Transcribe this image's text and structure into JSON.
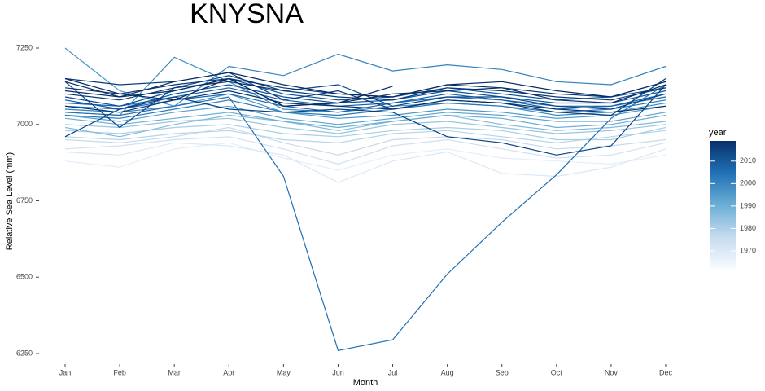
{
  "chart_data": {
    "type": "line",
    "title": "KNYSNA",
    "x_label": "Month",
    "y_label": "Relative Sea Level (mm)",
    "categories": [
      "Jan",
      "Feb",
      "Mar",
      "Apr",
      "May",
      "Jun",
      "Jul",
      "Aug",
      "Sep",
      "Oct",
      "Nov",
      "Dec"
    ],
    "ylim": [
      6220,
      7300
    ],
    "yticks": [
      6250,
      6500,
      6750,
      7000,
      7250
    ],
    "grid": false,
    "legend": {
      "title": "year",
      "position": "right",
      "colorbar_lim": [
        1962,
        2019
      ],
      "colorbar_ticks": [
        1970,
        1980,
        1990,
        2000,
        2010
      ],
      "colorbar_colors": [
        "#f7fbff",
        "#c6dbef",
        "#6baed6",
        "#2171b5",
        "#08306b"
      ]
    },
    "series": [
      {
        "name": "1965",
        "color": "#e4eef9",
        "values": [
          6880,
          6860,
          6920,
          6940,
          6890,
          6850,
          6900,
          6920,
          6890,
          6880,
          6870,
          6900
        ]
      },
      {
        "name": "1967",
        "color": "#dae8f5",
        "values": [
          6910,
          6900,
          6940,
          6930,
          6900,
          6810,
          6880,
          6910,
          6840,
          6830,
          6860,
          6920
        ]
      },
      {
        "name": "1969",
        "color": "#cfe1f2",
        "values": [
          6920,
          6930,
          6950,
          6960,
          6920,
          6870,
          6930,
          6950,
          6920,
          6890,
          6900,
          6940
        ]
      },
      {
        "name": "1971",
        "color": "#c4daee",
        "values": [
          6950,
          6940,
          6960,
          6990,
          6940,
          6900,
          6950,
          6960,
          6950,
          6920,
          6930,
          6950
        ]
      },
      {
        "name": "1973",
        "color": "#b7d4ea",
        "values": [
          6960,
          6950,
          6970,
          6980,
          6950,
          6940,
          6970,
          6980,
          6960,
          6940,
          6960,
          6980
        ]
      },
      {
        "name": "1975",
        "color": "#a8cee4",
        "values": [
          6980,
          6970,
          6990,
          7000,
          6970,
          6960,
          6980,
          6990,
          6980,
          6950,
          6950,
          6990
        ]
      },
      {
        "name": "1977",
        "color": "#97c4df",
        "values": [
          7000,
          6990,
          7010,
          7020,
          6990,
          6970,
          7000,
          7010,
          6990,
          6970,
          6980,
          7000
        ]
      },
      {
        "name": "1979",
        "color": "#83badb",
        "values": [
          6990,
          6960,
          7000,
          7030,
          7010,
          6980,
          7010,
          7030,
          7000,
          6980,
          6990,
          7010
        ]
      },
      {
        "name": "1981",
        "color": "#6daed5",
        "values": [
          7020,
          7000,
          7020,
          7040,
          7010,
          6990,
          7010,
          7030,
          7020,
          6990,
          7000,
          7030
        ]
      },
      {
        "name": "1983",
        "color": "#5ba3d0",
        "values": [
          7030,
          7010,
          7040,
          7060,
          7020,
          7000,
          7020,
          7040,
          7030,
          7010,
          7010,
          7040
        ]
      },
      {
        "name": "1985",
        "color": "#4a98c9",
        "values": [
          7250,
          7110,
          7060,
          7100,
          7040,
          7020,
          7030,
          7050,
          7040,
          7020,
          7030,
          7060
        ]
      },
      {
        "name": "1987",
        "color": "#3d8dc3",
        "values": [
          7040,
          7030,
          7220,
          7140,
          7050,
          7040,
          7060,
          7070,
          7060,
          7030,
          7040,
          7070
        ]
      },
      {
        "name": "1989",
        "color": "#3282be",
        "values": [
          7050,
          7040,
          7060,
          7190,
          7160,
          7230,
          7175,
          7195,
          7180,
          7140,
          7130,
          7190
        ]
      },
      {
        "name": "1991",
        "color": "#2878b8",
        "values": [
          7030,
          7020,
          7050,
          7080,
          7040,
          7030,
          7050,
          7070,
          7060,
          7040,
          7050,
          7080
        ]
      },
      {
        "name": "1993",
        "color": "#206fb3",
        "values": [
          7040,
          7030,
          7060,
          7090,
          6830,
          6260,
          6295,
          6510,
          6680,
          6835,
          7020,
          7130
        ]
      },
      {
        "name": "1995",
        "color": "#1966ad",
        "values": [
          7060,
          7050,
          7080,
          7100,
          7060,
          7040,
          7070,
          7090,
          7080,
          7050,
          7060,
          7090
        ]
      },
      {
        "name": "1997",
        "color": "#125ea6",
        "values": [
          7070,
          7060,
          7090,
          7120,
          7080,
          7060,
          7070,
          7100,
          7080,
          7060,
          7060,
          7100
        ]
      },
      {
        "name": "1999",
        "color": "#0b559f",
        "values": [
          7080,
          7050,
          7100,
          7130,
          7090,
          7070,
          7080,
          7110,
          7090,
          7070,
          7070,
          7110
        ]
      },
      {
        "name": "2001",
        "color": "#084d96",
        "values": [
          7090,
          7060,
          7110,
          7150,
          7100,
          7080,
          7090,
          7120,
          7100,
          7080,
          7090,
          7120
        ]
      },
      {
        "name": "2003",
        "color": "#08468b",
        "values": [
          7140,
          6990,
          7120,
          7160,
          7110,
          7130,
          7060,
          7090,
          7090,
          7060,
          7050,
          7100
        ]
      },
      {
        "name": "2005",
        "color": "#084082",
        "values": [
          6960,
          7050,
          7090,
          7050,
          7040,
          7050,
          7040,
          6960,
          6940,
          6900,
          6930,
          7130
        ]
      },
      {
        "name": "2007",
        "color": "#083b79",
        "values": [
          7150,
          7130,
          7140,
          7170,
          7080,
          7110,
          7050,
          7080,
          7070,
          7040,
          7030,
          7150
        ]
      },
      {
        "name": "2009",
        "color": "#083672",
        "values": [
          7100,
          7080,
          7120,
          7140,
          7110,
          7090,
          7080,
          7120,
          7110,
          7090,
          7080,
          7120
        ]
      },
      {
        "name": "2011",
        "color": "#08336d",
        "values": [
          7120,
          7100,
          7130,
          7150,
          7120,
          7100,
          7090,
          7130,
          7120,
          7100,
          7090,
          7140
        ]
      },
      {
        "name": "2013",
        "color": "#08306b",
        "values": [
          7060,
          7040,
          7080,
          7110,
          7070,
          7060,
          7050,
          7080,
          7070,
          7050,
          7040,
          7060
        ]
      },
      {
        "name": "2015",
        "color": "#082e66",
        "values": [
          7110,
          7090,
          7110,
          7150,
          7060,
          7070,
          7100,
          7110,
          7120,
          7080,
          7070,
          7130
        ]
      },
      {
        "name": "2017",
        "color": "#082c62",
        "values": [
          7140,
          7090,
          7140,
          7170,
          7130,
          7100,
          7090,
          7130,
          7140,
          7110,
          7090,
          7140
        ]
      },
      {
        "name": "2019",
        "color": "#08295d",
        "values": [
          7150,
          7100,
          7080,
          7150,
          7060,
          7070,
          7125,
          null,
          null,
          null,
          null,
          null
        ]
      }
    ]
  }
}
